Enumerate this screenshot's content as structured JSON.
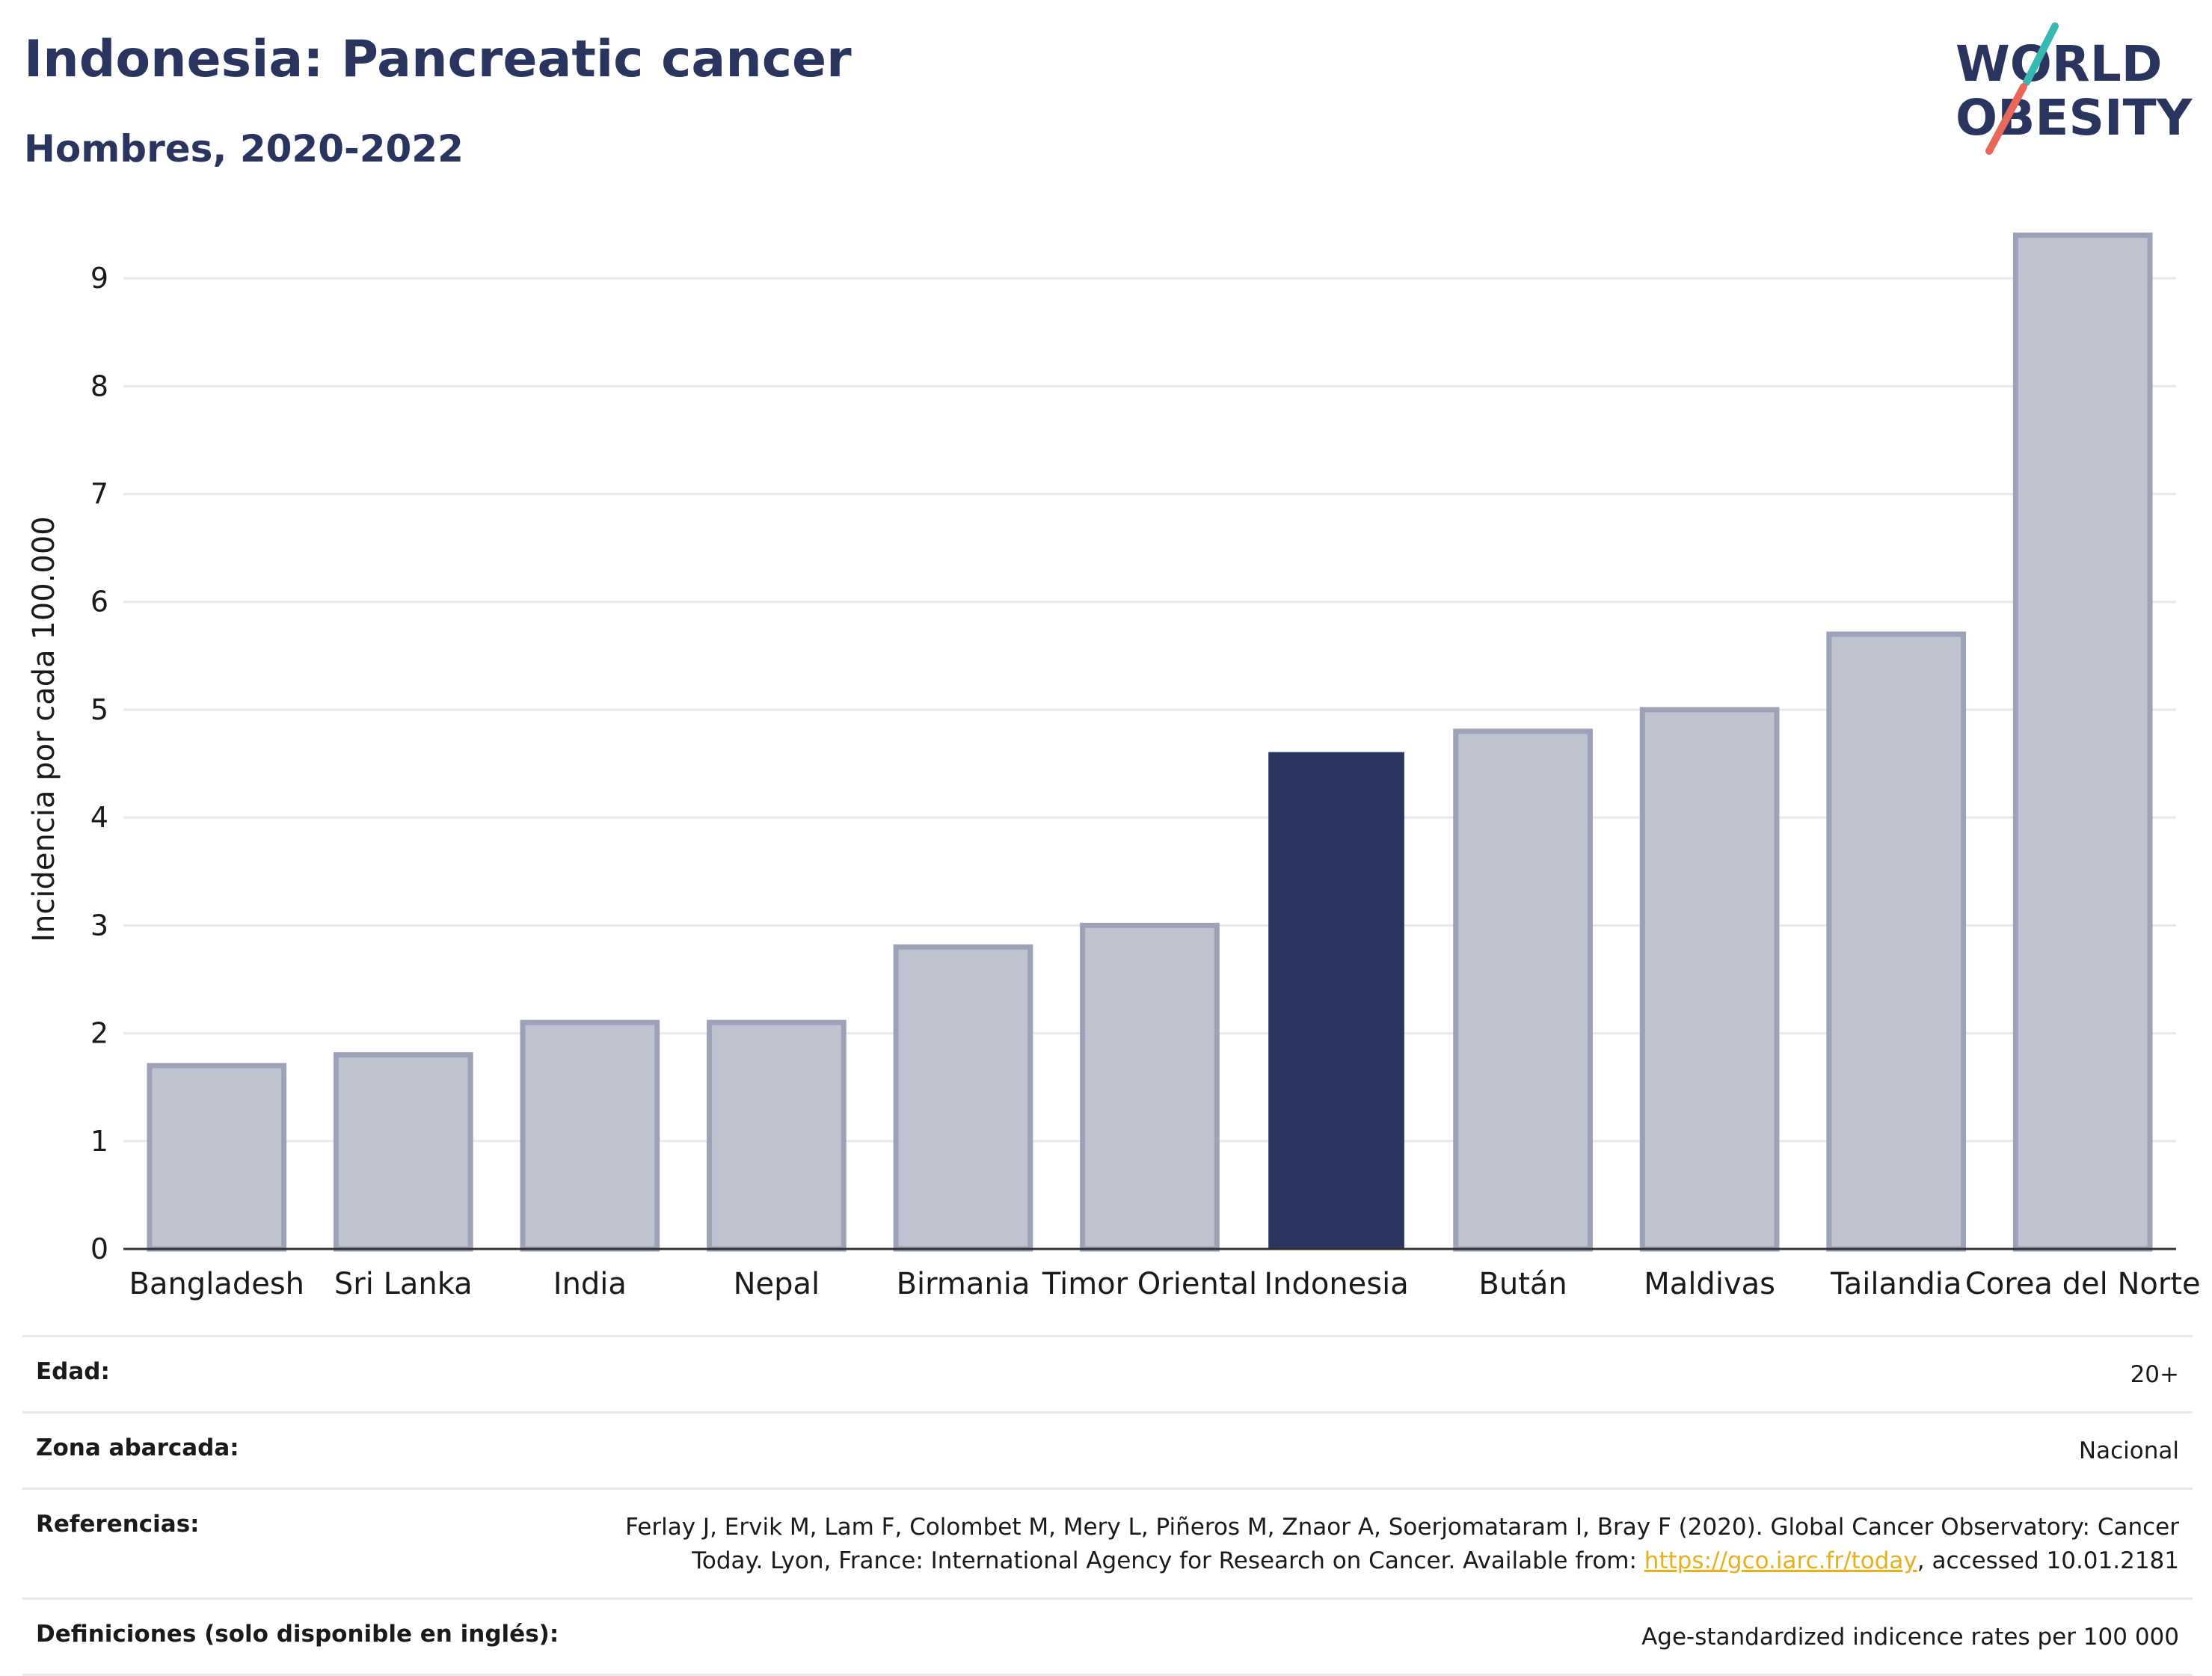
{
  "header": {
    "title": "Indonesia: Pancreatic cancer",
    "subtitle": "Hombres, 2020-2022"
  },
  "logo": {
    "line1": "WORLD",
    "line2": "OBESITY",
    "colors": {
      "text": "#2a355f",
      "teal": "#36b9b0",
      "coral": "#e9685a"
    }
  },
  "chart_data": {
    "type": "bar",
    "title": "Indonesia: Pancreatic cancer",
    "subtitle": "Hombres, 2020-2022",
    "xlabel": "",
    "ylabel": "Incidencia por cada 100.000",
    "ylim": [
      0,
      9.5
    ],
    "yticks": [
      0,
      1,
      2,
      3,
      4,
      5,
      6,
      7,
      8,
      9
    ],
    "grid": true,
    "categories": [
      "Bangladesh",
      "Sri Lanka",
      "India",
      "Nepal",
      "Birmania",
      "Timor Oriental",
      "Indonesia",
      "Bután",
      "Maldivas",
      "Tailandia",
      "Corea del Norte"
    ],
    "values": [
      1.7,
      1.8,
      2.1,
      2.1,
      2.8,
      3.0,
      4.6,
      4.8,
      5.0,
      5.7,
      9.4
    ],
    "highlight": "Indonesia",
    "colors": {
      "highlight": "#2a355f",
      "bar_fill": "#bfc2cf",
      "bar_stroke": "#9ea2b8",
      "grid": "#e8e8ee",
      "axis": "#333333"
    }
  },
  "info": {
    "age_label": "Edad:",
    "age_value": "20+",
    "area_label": "Zona abarcada:",
    "area_value": "Nacional",
    "ref_label": "Referencias:",
    "ref_text_1": "Ferlay J, Ervik M, Lam F, Colombet M, Mery L, Piñeros M, Znaor A, Soerjomataram I, Bray F (2020). Global Cancer Observatory: Cancer Today. Lyon, France: International Agency for Research on Cancer. Available from: ",
    "ref_link": "https://gco.iarc.fr/today",
    "ref_text_2": ", accessed 10.01.2181",
    "def_label": "Definiciones (solo disponible en inglés):",
    "def_value": "Age-standardized indicence rates per 100 000"
  }
}
